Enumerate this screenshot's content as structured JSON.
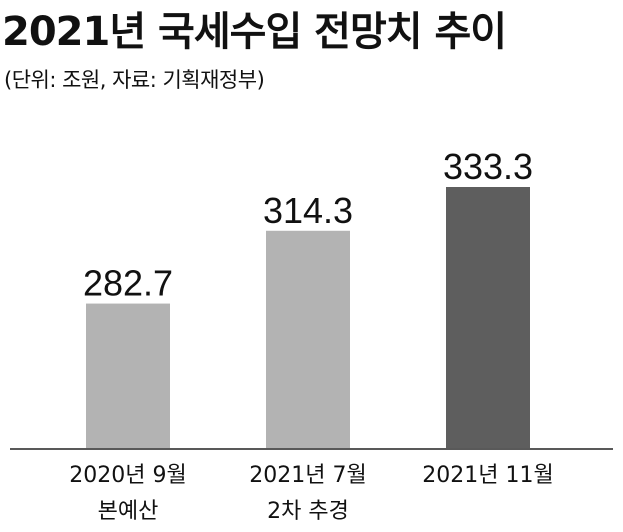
{
  "chart_data": {
    "type": "bar",
    "title": "2021년 국세수입 전망치 추이",
    "subtitle": "(단위: 조원, 자료: 기획재정부)",
    "categories": [
      [
        "2020년 9월",
        "본예산"
      ],
      [
        "2021년 7월",
        "2차 추경"
      ],
      [
        "2021년 11월"
      ]
    ],
    "values": [
      282.7,
      314.3,
      333.3
    ],
    "value_labels": [
      "282.7",
      "314.3",
      "333.3"
    ],
    "bar_colors": [
      "#b3b3b3",
      "#b3b3b3",
      "#5e5e5e"
    ],
    "baseline_value": 220,
    "ylim": [
      220,
      345
    ],
    "grid": false,
    "legend": "none"
  }
}
